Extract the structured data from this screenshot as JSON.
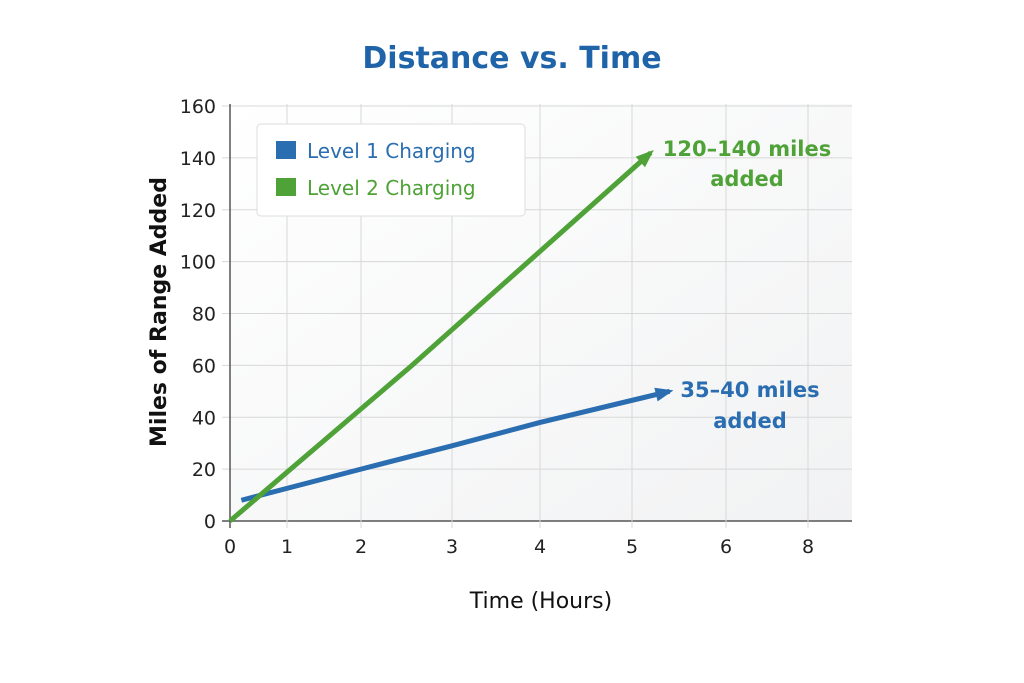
{
  "chart_data": {
    "type": "line",
    "title": "Distance vs. Time",
    "xlabel": "Time (Hours)",
    "ylabel": "Miles of Range Added",
    "x_ticks": [
      "0",
      "1",
      "2",
      "3",
      "4",
      "5",
      "6",
      "8"
    ],
    "x_tick_values": [
      0,
      1,
      2,
      3,
      4,
      5,
      6,
      8
    ],
    "y_ticks": [
      "0",
      "20",
      "40",
      "60",
      "80",
      "100",
      "120",
      "140",
      "160"
    ],
    "y_tick_values": [
      0,
      20,
      40,
      60,
      80,
      100,
      120,
      140,
      160
    ],
    "ylim": [
      0,
      160
    ],
    "grid": true,
    "legend_position": "top-left",
    "series": [
      {
        "name": "Level 1 Charging",
        "color": "#2a6db0",
        "x": [
          0.2,
          2,
          3,
          4,
          5.4
        ],
        "y": [
          8,
          20,
          29,
          38,
          50
        ]
      },
      {
        "name": "Level 2 Charging",
        "color": "#4ea237",
        "x": [
          0,
          2.56,
          5.2
        ],
        "y": [
          0,
          60,
          142
        ]
      }
    ],
    "annotations": [
      {
        "series": 1,
        "line1": "120–140 miles",
        "line2": "added"
      },
      {
        "series": 0,
        "line1": "35–40 miles",
        "line2": "added"
      }
    ]
  }
}
